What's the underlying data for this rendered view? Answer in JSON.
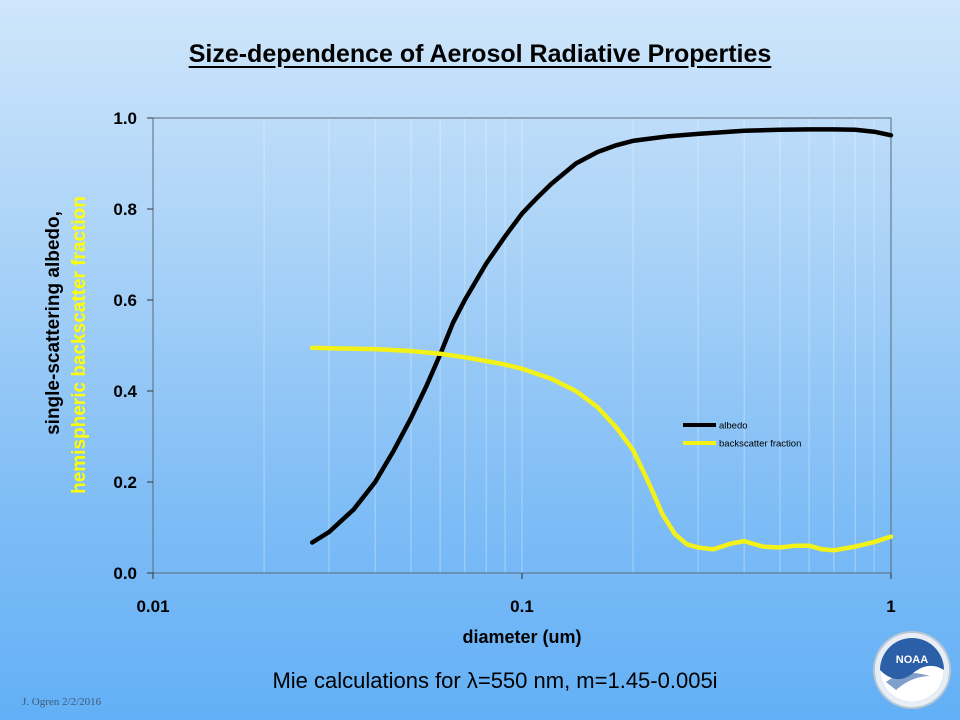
{
  "slide": {
    "title": "Size-dependence of Aerosol Radiative Properties",
    "subtitle": "Mie calculations for λ=550 nm, m=1.45-0.005i",
    "author": "J. Ogren  2/2/2016",
    "logo_text": "NOAA"
  },
  "colors": {
    "albedo": "#000000",
    "backscatter": "#f2f218",
    "ylabel_line2": "#ffff00"
  },
  "chart_data": {
    "type": "line",
    "title": "Size-dependence of Aerosol Radiative Properties",
    "xlabel": "diameter (um)",
    "ylabel": [
      "single-scattering albedo,",
      "hemispheric backscatter fraction"
    ],
    "xscale": "log",
    "xlim": [
      0.01,
      1
    ],
    "ylim": [
      0,
      1
    ],
    "xticks": [
      0.01,
      0.1,
      1
    ],
    "xtick_labels": [
      "0.01",
      "0.1",
      "1"
    ],
    "yticks": [
      0,
      0.2,
      0.4,
      0.6,
      0.8,
      1.0
    ],
    "ytick_labels": [
      "0.0",
      "0.2",
      "0.4",
      "0.6",
      "0.8",
      "1.0"
    ],
    "grid": "vertical minor lines",
    "legend_position": "right, mid-height",
    "series": [
      {
        "name": "albedo",
        "color": "#000000",
        "x": [
          0.027,
          0.03,
          0.035,
          0.04,
          0.045,
          0.05,
          0.055,
          0.06,
          0.065,
          0.07,
          0.08,
          0.09,
          0.1,
          0.11,
          0.12,
          0.14,
          0.16,
          0.18,
          0.2,
          0.25,
          0.3,
          0.4,
          0.5,
          0.6,
          0.7,
          0.8,
          0.9,
          1.0
        ],
        "y": [
          0.067,
          0.09,
          0.14,
          0.2,
          0.27,
          0.34,
          0.41,
          0.48,
          0.55,
          0.6,
          0.68,
          0.74,
          0.79,
          0.825,
          0.855,
          0.9,
          0.925,
          0.94,
          0.95,
          0.96,
          0.965,
          0.972,
          0.974,
          0.975,
          0.975,
          0.974,
          0.97,
          0.962
        ]
      },
      {
        "name": "backscatter fraction",
        "color": "#f2f218",
        "x": [
          0.027,
          0.03,
          0.04,
          0.05,
          0.06,
          0.07,
          0.08,
          0.09,
          0.1,
          0.12,
          0.14,
          0.16,
          0.18,
          0.2,
          0.22,
          0.24,
          0.26,
          0.28,
          0.3,
          0.33,
          0.37,
          0.4,
          0.45,
          0.5,
          0.55,
          0.6,
          0.65,
          0.7,
          0.8,
          0.9,
          1.0
        ],
        "y": [
          0.495,
          0.494,
          0.492,
          0.488,
          0.482,
          0.474,
          0.466,
          0.458,
          0.449,
          0.427,
          0.4,
          0.365,
          0.32,
          0.27,
          0.2,
          0.13,
          0.085,
          0.063,
          0.056,
          0.052,
          0.065,
          0.07,
          0.058,
          0.056,
          0.06,
          0.06,
          0.052,
          0.05,
          0.058,
          0.068,
          0.08
        ]
      }
    ]
  }
}
